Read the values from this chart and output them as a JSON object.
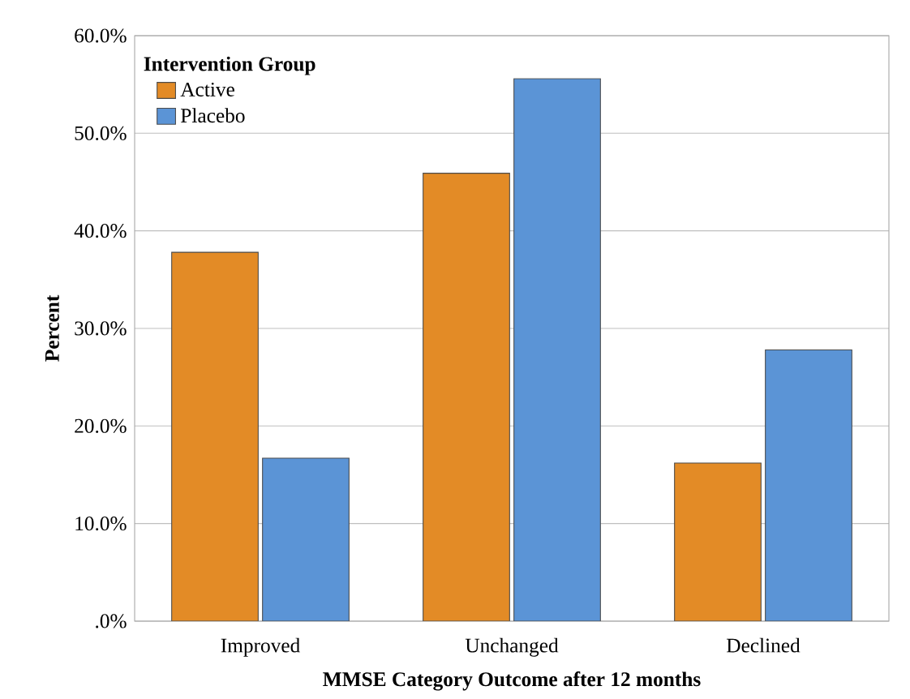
{
  "chart_data": {
    "type": "bar",
    "xlabel": "MMSE Category Outcome after 12 months",
    "ylabel": "Percent",
    "legend_title": "Intervention Group",
    "categories": [
      "Improved",
      "Unchanged",
      "Declined"
    ],
    "series": [
      {
        "name": "Active",
        "color": "#e38b26",
        "values": [
          37.8,
          45.9,
          16.2
        ]
      },
      {
        "name": "Placebo",
        "color": "#5b94d6",
        "values": [
          16.7,
          55.6,
          27.8
        ]
      }
    ],
    "ylim": [
      0,
      60
    ],
    "yticks": [
      {
        "value": 0,
        "label": ".0%"
      },
      {
        "value": 10,
        "label": "10.0%"
      },
      {
        "value": 20,
        "label": "20.0%"
      },
      {
        "value": 30,
        "label": "30.0%"
      },
      {
        "value": 40,
        "label": "40.0%"
      },
      {
        "value": 50,
        "label": "50.0%"
      },
      {
        "value": 60,
        "label": "60.0%"
      }
    ],
    "grid": "y",
    "legend": "top left"
  }
}
